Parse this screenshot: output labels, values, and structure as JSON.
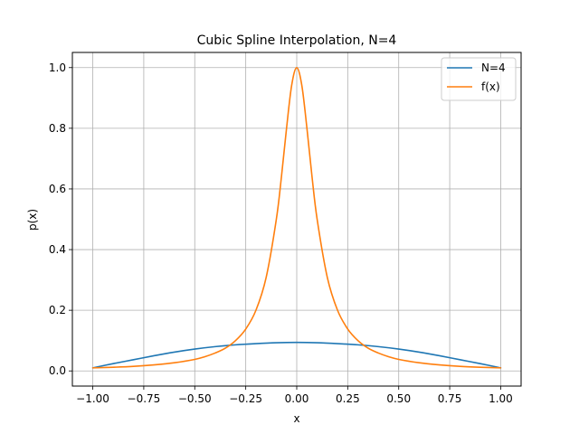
{
  "chart_data": {
    "type": "line",
    "title": "Cubic Spline Interpolation, N=4",
    "xlabel": "x",
    "ylabel": "p(x)",
    "xlim": [
      -1.1,
      1.1
    ],
    "ylim": [
      -0.05,
      1.05
    ],
    "grid": true,
    "legend_position": "top-right",
    "x_ticks": [
      -1.0,
      -0.75,
      -0.5,
      -0.25,
      0.0,
      0.25,
      0.5,
      0.75,
      1.0
    ],
    "x_tick_labels": [
      "−1.00",
      "−0.75",
      "−0.50",
      "−0.25",
      "0.00",
      "0.25",
      "0.50",
      "0.75",
      "1.00"
    ],
    "y_ticks": [
      0.0,
      0.2,
      0.4,
      0.6,
      0.8,
      1.0
    ],
    "y_tick_labels": [
      "0.0",
      "0.2",
      "0.4",
      "0.6",
      "0.8",
      "1.0"
    ],
    "series": [
      {
        "name": "N=4",
        "color": "#1f77b4",
        "x": [
          -1.0,
          -0.9,
          -0.8,
          -0.7,
          -0.6,
          -0.5,
          -0.4,
          -0.3,
          -0.2,
          -0.1,
          0.0,
          0.1,
          0.2,
          0.3,
          0.4,
          0.5,
          0.6,
          0.7,
          0.8,
          0.9,
          1.0
        ],
        "y": [
          0.01,
          0.024,
          0.037,
          0.05,
          0.062,
          0.072,
          0.08,
          0.086,
          0.09,
          0.093,
          0.094,
          0.093,
          0.09,
          0.086,
          0.08,
          0.072,
          0.062,
          0.05,
          0.037,
          0.024,
          0.01
        ]
      },
      {
        "name": "f(x)",
        "color": "#ff7f0e",
        "x": [
          -1.0,
          -0.9,
          -0.8,
          -0.7,
          -0.6,
          -0.5,
          -0.45,
          -0.4,
          -0.35,
          -0.3,
          -0.25,
          -0.2,
          -0.15,
          -0.1,
          -0.075,
          -0.05,
          -0.025,
          0.0,
          0.025,
          0.05,
          0.075,
          0.1,
          0.15,
          0.2,
          0.25,
          0.3,
          0.35,
          0.4,
          0.45,
          0.5,
          0.6,
          0.7,
          0.8,
          0.9,
          1.0
        ],
        "y": [
          0.01,
          0.012,
          0.015,
          0.02,
          0.027,
          0.038,
          0.047,
          0.059,
          0.075,
          0.1,
          0.138,
          0.2,
          0.308,
          0.5,
          0.64,
          0.8,
          0.941,
          1.0,
          0.941,
          0.8,
          0.64,
          0.5,
          0.308,
          0.2,
          0.138,
          0.1,
          0.075,
          0.059,
          0.047,
          0.038,
          0.027,
          0.02,
          0.015,
          0.012,
          0.01
        ]
      }
    ]
  }
}
